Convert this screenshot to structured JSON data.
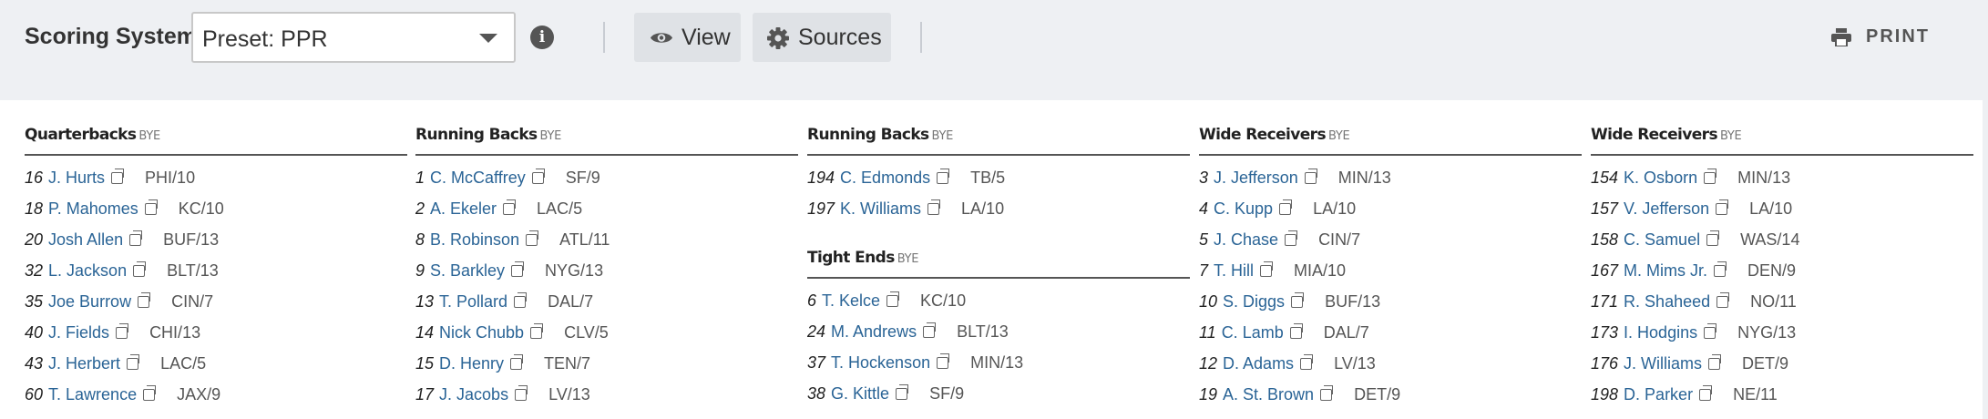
{
  "toolbar": {
    "scoring_label": "Scoring System",
    "preset_value": "Preset: PPR",
    "info_icon": "info-circle-icon",
    "view_label": "View",
    "view_icon": "eye-icon",
    "sources_label": "Sources",
    "sources_icon": "gear-icon",
    "print_label": "PRINT",
    "print_icon": "printer-icon"
  },
  "columns": [
    {
      "sections": [
        {
          "title": "Quarterbacks",
          "bye": "BYE",
          "players": [
            {
              "rank": "16",
              "name": "J. Hurts",
              "team": "PHI/10"
            },
            {
              "rank": "18",
              "name": "P. Mahomes",
              "team": "KC/10"
            },
            {
              "rank": "20",
              "name": "Josh Allen",
              "team": "BUF/13"
            },
            {
              "rank": "32",
              "name": "L. Jackson",
              "team": "BLT/13"
            },
            {
              "rank": "35",
              "name": "Joe Burrow",
              "team": "CIN/7"
            },
            {
              "rank": "40",
              "name": "J. Fields",
              "team": "CHI/13"
            },
            {
              "rank": "43",
              "name": "J. Herbert",
              "team": "LAC/5"
            },
            {
              "rank": "60",
              "name": "T. Lawrence",
              "team": "JAX/9"
            }
          ]
        }
      ]
    },
    {
      "sections": [
        {
          "title": "Running Backs",
          "bye": "BYE",
          "players": [
            {
              "rank": "1",
              "name": "C. McCaffrey",
              "team": "SF/9"
            },
            {
              "rank": "2",
              "name": "A. Ekeler",
              "team": "LAC/5"
            },
            {
              "rank": "8",
              "name": "B. Robinson",
              "team": "ATL/11"
            },
            {
              "rank": "9",
              "name": "S. Barkley",
              "team": "NYG/13"
            },
            {
              "rank": "13",
              "name": "T. Pollard",
              "team": "DAL/7"
            },
            {
              "rank": "14",
              "name": "Nick Chubb",
              "team": "CLV/5"
            },
            {
              "rank": "15",
              "name": "D. Henry",
              "team": "TEN/7"
            },
            {
              "rank": "17",
              "name": "J. Jacobs",
              "team": "LV/13"
            }
          ]
        }
      ]
    },
    {
      "sections": [
        {
          "title": "Running Backs",
          "bye": "BYE",
          "players": [
            {
              "rank": "194",
              "name": "C. Edmonds",
              "team": "TB/5"
            },
            {
              "rank": "197",
              "name": "K. Williams",
              "team": "LA/10"
            }
          ]
        },
        {
          "title": "Tight Ends",
          "bye": "BYE",
          "players": [
            {
              "rank": "6",
              "name": "T. Kelce",
              "team": "KC/10"
            },
            {
              "rank": "24",
              "name": "M. Andrews",
              "team": "BLT/13"
            },
            {
              "rank": "37",
              "name": "T. Hockenson",
              "team": "MIN/13"
            },
            {
              "rank": "38",
              "name": "G. Kittle",
              "team": "SF/9"
            }
          ]
        }
      ]
    },
    {
      "sections": [
        {
          "title": "Wide Receivers",
          "bye": "BYE",
          "players": [
            {
              "rank": "3",
              "name": "J. Jefferson",
              "team": "MIN/13"
            },
            {
              "rank": "4",
              "name": "C. Kupp",
              "team": "LA/10"
            },
            {
              "rank": "5",
              "name": "J. Chase",
              "team": "CIN/7"
            },
            {
              "rank": "7",
              "name": "T. Hill",
              "team": "MIA/10"
            },
            {
              "rank": "10",
              "name": "S. Diggs",
              "team": "BUF/13"
            },
            {
              "rank": "11",
              "name": "C. Lamb",
              "team": "DAL/7"
            },
            {
              "rank": "12",
              "name": "D. Adams",
              "team": "LV/13"
            },
            {
              "rank": "19",
              "name": "A. St. Brown",
              "team": "DET/9"
            }
          ]
        }
      ]
    },
    {
      "sections": [
        {
          "title": "Wide Receivers",
          "bye": "BYE",
          "players": [
            {
              "rank": "154",
              "name": "K. Osborn",
              "team": "MIN/13"
            },
            {
              "rank": "157",
              "name": "V. Jefferson",
              "team": "LA/10"
            },
            {
              "rank": "158",
              "name": "C. Samuel",
              "team": "WAS/14"
            },
            {
              "rank": "167",
              "name": "M. Mims Jr.",
              "team": "DEN/9"
            },
            {
              "rank": "171",
              "name": "R. Shaheed",
              "team": "NO/11"
            },
            {
              "rank": "173",
              "name": "I. Hodgins",
              "team": "NYG/13"
            },
            {
              "rank": "176",
              "name": "J. Williams",
              "team": "DET/9"
            },
            {
              "rank": "198",
              "name": "D. Parker",
              "team": "NE/11"
            }
          ]
        }
      ]
    }
  ]
}
